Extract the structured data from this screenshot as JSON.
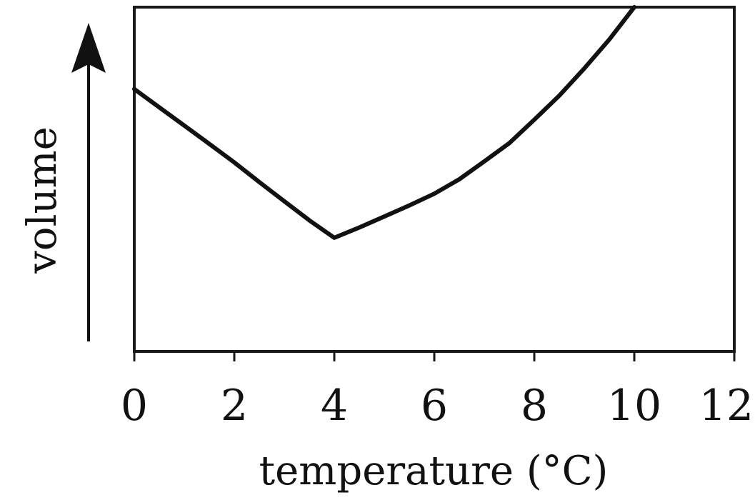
{
  "chart_data": {
    "type": "line",
    "title": "",
    "xlabel": "temperature (°C)",
    "ylabel": "volume",
    "xlim": [
      0,
      12
    ],
    "xticks": [
      0,
      2,
      4,
      6,
      8,
      10,
      12
    ],
    "ylim": [
      0,
      1
    ],
    "y_tick_labels_shown": false,
    "ylabel_arrow": true,
    "grid": false,
    "legend": "none",
    "series": [
      {
        "x": [
          0,
          0.5,
          1,
          1.5,
          2,
          2.5,
          3,
          3.5,
          4,
          4.5,
          5,
          5.5,
          6,
          6.5,
          7,
          7.5,
          8,
          8.5,
          9,
          9.5,
          10
        ],
        "y": [
          0.762,
          0.709,
          0.656,
          0.603,
          0.549,
          0.492,
          0.436,
          0.381,
          0.33,
          0.36,
          0.392,
          0.424,
          0.458,
          0.5,
          0.552,
          0.605,
          0.673,
          0.743,
          0.822,
          0.906,
          1.0
        ]
      }
    ]
  }
}
